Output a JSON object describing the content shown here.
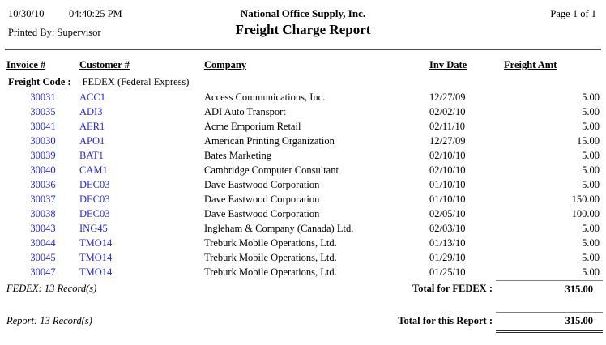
{
  "page_header": {
    "date": "10/30/10",
    "time": "04:40:25 PM",
    "printed_by": "Printed By: Supervisor",
    "company": "National Office Supply, Inc.",
    "title": "Freight Charge Report",
    "page": "Page 1 of 1"
  },
  "table": {
    "columns": [
      "Invoice #",
      "Customer #",
      "Company",
      "Inv Date",
      "Freight Amt"
    ],
    "group": {
      "label": "Freight Code :",
      "value": "FEDEX (Federal Express)"
    },
    "rows": [
      {
        "invoice": "30031",
        "customer": "ACC1",
        "company": "Access Communications, Inc.",
        "inv_date": "12/27/09",
        "freight_amt": "5.00"
      },
      {
        "invoice": "30035",
        "customer": "ADI3",
        "company": "ADI Auto Transport",
        "inv_date": "02/02/10",
        "freight_amt": "5.00"
      },
      {
        "invoice": "30041",
        "customer": "AER1",
        "company": "Acme Emporium Retail",
        "inv_date": "02/11/10",
        "freight_amt": "5.00"
      },
      {
        "invoice": "30030",
        "customer": "APO1",
        "company": "American Printing Organization",
        "inv_date": "12/27/09",
        "freight_amt": "15.00"
      },
      {
        "invoice": "30039",
        "customer": "BAT1",
        "company": "Bates Marketing",
        "inv_date": "02/10/10",
        "freight_amt": "5.00"
      },
      {
        "invoice": "30040",
        "customer": "CAM1",
        "company": "Cambridge Computer Consultant",
        "inv_date": "02/10/10",
        "freight_amt": "5.00"
      },
      {
        "invoice": "30036",
        "customer": "DEC03",
        "company": "Dave Eastwood Corporation",
        "inv_date": "01/10/10",
        "freight_amt": "5.00"
      },
      {
        "invoice": "30037",
        "customer": "DEC03",
        "company": "Dave Eastwood Corporation",
        "inv_date": "01/10/10",
        "freight_amt": "150.00"
      },
      {
        "invoice": "30038",
        "customer": "DEC03",
        "company": "Dave Eastwood Corporation",
        "inv_date": "02/05/10",
        "freight_amt": "100.00"
      },
      {
        "invoice": "30043",
        "customer": "ING45",
        "company": "Ingleham & Company (Canada) Ltd.",
        "inv_date": "02/03/10",
        "freight_amt": "5.00"
      },
      {
        "invoice": "30044",
        "customer": "TMO14",
        "company": "Treburk Mobile Operations, Ltd.",
        "inv_date": "01/13/10",
        "freight_amt": "5.00"
      },
      {
        "invoice": "30045",
        "customer": "TMO14",
        "company": "Treburk Mobile Operations, Ltd.",
        "inv_date": "01/29/10",
        "freight_amt": "5.00"
      },
      {
        "invoice": "30047",
        "customer": "TMO14",
        "company": "Treburk Mobile Operations, Ltd.",
        "inv_date": "01/25/10",
        "freight_amt": "5.00"
      }
    ]
  },
  "summary": {
    "group_count": "FEDEX: 13 Record(s)",
    "group_total_label": "Total for FEDEX :",
    "group_total": "315.00",
    "report_count": "Report: 13 Record(s)",
    "report_total_label": "Total for this Report :",
    "report_total": "315.00"
  },
  "colors": {
    "link_blue": "#2929c8",
    "text": "#000000",
    "rule_gray": "#7d7d7d"
  }
}
